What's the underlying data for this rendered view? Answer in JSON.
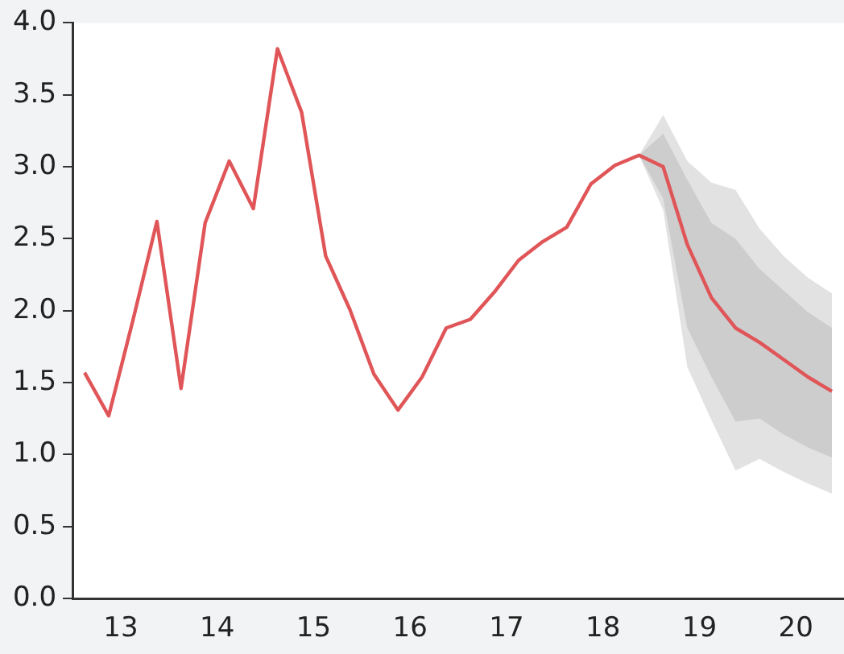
{
  "chart_data": {
    "type": "line",
    "grid": false,
    "legend": false,
    "marker": "none",
    "line_style": "solid",
    "x": [
      12.625,
      12.875,
      13.125,
      13.375,
      13.625,
      13.875,
      14.125,
      14.375,
      14.625,
      14.875,
      15.125,
      15.375,
      15.625,
      15.875,
      16.125,
      16.375,
      16.625,
      16.875,
      17.125,
      17.375,
      17.625,
      17.875,
      18.125,
      18.375,
      18.625,
      18.875,
      19.125,
      19.375,
      19.625,
      19.875,
      20.125,
      20.375
    ],
    "xlim": [
      12.5,
      20.5
    ],
    "xticks": [
      13,
      14,
      15,
      16,
      17,
      18,
      19,
      20
    ],
    "ylim": [
      0,
      4
    ],
    "yticks": [
      {
        "value": 0,
        "label": "0.0"
      },
      0.5,
      {
        "value": 1,
        "label": "1.0"
      },
      1.5,
      {
        "value": 2,
        "label": "2.0"
      },
      2.5,
      {
        "value": 3,
        "label": "3.0"
      },
      3.5,
      {
        "value": 4,
        "label": "4.0"
      }
    ],
    "series": [
      {
        "type": "area",
        "color": "#e2e2e2",
        "x": [
          18.375,
          18.625,
          18.875,
          19.125,
          19.375,
          19.625,
          19.875,
          20.125,
          20.375
        ],
        "values": [
          null,
          null,
          null,
          null,
          null,
          null,
          null,
          null,
          null
        ],
        "lower": [
          3.08,
          2.7,
          1.61,
          1.24,
          0.89,
          0.97,
          0.88,
          0.8,
          0.73
        ],
        "upper": [
          3.08,
          3.36,
          3.04,
          2.89,
          2.84,
          2.57,
          2.38,
          2.23,
          2.12
        ]
      },
      {
        "type": "area",
        "color": "#cdcdcd",
        "x": [
          18.375,
          18.625,
          18.875,
          19.125,
          19.375,
          19.625,
          19.875,
          20.125,
          20.375
        ],
        "values": [
          null,
          null,
          null,
          null,
          null,
          null,
          null,
          null,
          null
        ],
        "lower": [
          3.08,
          2.78,
          1.88,
          1.54,
          1.23,
          1.25,
          1.14,
          1.05,
          0.98
        ],
        "upper": [
          3.08,
          3.23,
          2.91,
          2.61,
          2.5,
          2.29,
          2.14,
          1.99,
          1.88
        ]
      },
      {
        "color": "#e05558",
        "values": [
          1.57,
          1.27,
          1.93,
          2.62,
          1.46,
          2.61,
          3.04,
          2.71,
          3.82,
          3.38,
          2.38,
          2.01,
          1.56,
          1.31,
          1.54,
          1.88,
          1.94,
          2.13,
          2.35,
          2.48,
          2.58,
          2.88,
          3.01,
          3.08,
          3.0,
          2.46,
          2.09,
          1.88,
          1.78,
          1.66,
          1.54,
          1.44
        ]
      }
    ]
  }
}
